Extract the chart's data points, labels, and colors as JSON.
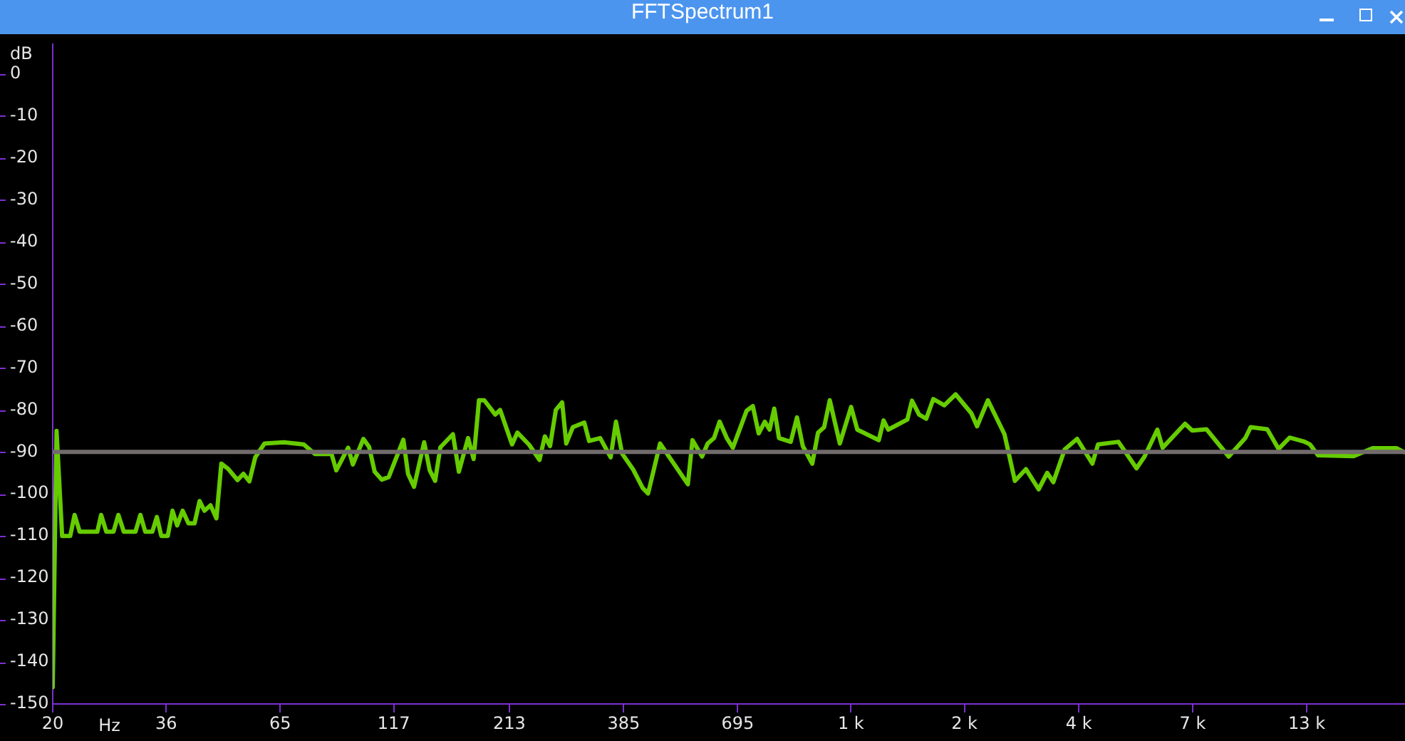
{
  "chart_data": {
    "type": "line",
    "title": "FFTSpectrum1",
    "xlabel": "Hz",
    "ylabel": "dB",
    "log": "x",
    "x": [
      20,
      20.4,
      21.0,
      21.9,
      22.4,
      23.0,
      25.2,
      25.7,
      26.4,
      27.4,
      28.1,
      28.9,
      30.7,
      31.5,
      32.3,
      33.5,
      34.3,
      35.1,
      36.3,
      37.2,
      38.1,
      39.2,
      40.4,
      41.7,
      42.8,
      43.9,
      45.3,
      46.7,
      47.9,
      49.6,
      52.1,
      53.7,
      55.4,
      57.1,
      59.9,
      66.2,
      73.4,
      77.8,
      84.8,
      86.9,
      92.4,
      94.7,
      100,
      103,
      106,
      110,
      114,
      123,
      126,
      130,
      137,
      141,
      145,
      149,
      159,
      164,
      172,
      177,
      182,
      187,
      198,
      203,
      216,
      222,
      236,
      249,
      256,
      263,
      271,
      280,
      286,
      296,
      314,
      322,
      341,
      360,
      370,
      382,
      404,
      425,
      437,
      465,
      537,
      550,
      578,
      595,
      615,
      633,
      657,
      678,
      728,
      752,
      775,
      800,
      820,
      840,
      861,
      915,
      945,
      974,
      1023,
      1054,
      1088,
      1120,
      1180,
      1251,
      1292,
      1444,
      1480,
      1516,
      1674,
      1715,
      1779,
      1846,
      1915,
      2027,
      2150,
      2332,
      2402,
      2541,
      2769,
      2922,
      3094,
      3305,
      3455,
      3566,
      3783,
      4034,
      4366,
      4496,
      4996,
      5488,
      5720,
      6113,
      6282,
      7055,
      7322,
      7882,
      8847,
      9644,
      9912,
      10800,
      11456,
      12126,
      13053,
      13472,
      14050,
      16900,
      18640,
      21090,
      21880
    ],
    "series": [
      {
        "color": "#66cc00",
        "values": [
          -146,
          -85,
          -110,
          -110,
          -105,
          -109,
          -109,
          -105,
          -109,
          -109,
          -105,
          -109,
          -109,
          -105,
          -109,
          -109,
          -105.5,
          -110,
          -110,
          -104,
          -107.5,
          -104,
          -107,
          -107,
          -101.7,
          -104,
          -102.7,
          -105.8,
          -92.8,
          -94,
          -96.7,
          -95.2,
          -97,
          -91.3,
          -88,
          -87.7,
          -88.2,
          -90.5,
          -90.5,
          -94.4,
          -89,
          -93,
          -86.9,
          -88.8,
          -94.7,
          -96.6,
          -96,
          -87.1,
          -95.2,
          -98.3,
          -87.7,
          -94.4,
          -96.9,
          -88.9,
          -85.8,
          -94.7,
          -86.7,
          -91.7,
          -77.7,
          -77.7,
          -81.1,
          -80,
          -88.2,
          -85.4,
          -88.3,
          -91.9,
          -86.3,
          -88.6,
          -80,
          -78.2,
          -88,
          -84.1,
          -83,
          -87.4,
          -86.7,
          -91.3,
          -82.8,
          -90.4,
          -94.1,
          -98.6,
          -99.9,
          -88,
          -97.7,
          -87.2,
          -91.1,
          -88,
          -86.7,
          -82.8,
          -86.7,
          -89,
          -80.2,
          -79.1,
          -85.6,
          -82.8,
          -84.7,
          -79.7,
          -86.7,
          -87.6,
          -81.8,
          -88.6,
          -92.8,
          -85.4,
          -84.1,
          -77.7,
          -88,
          -79.3,
          -84.7,
          -87.2,
          -82.5,
          -84.7,
          -82.3,
          -77.8,
          -81.1,
          -82.1,
          -77.4,
          -78.9,
          -76.3,
          -80.8,
          -83.9,
          -77.7,
          -85.8,
          -96.9,
          -94.1,
          -98.9,
          -95,
          -97.2,
          -89.4,
          -86.9,
          -92.8,
          -88.2,
          -87.6,
          -93.9,
          -91.1,
          -84.7,
          -89,
          -83.3,
          -84.9,
          -84.6,
          -91.1,
          -86.7,
          -84.1,
          -84.6,
          -89.3,
          -86.6,
          -87.5,
          -88.2,
          -90.8,
          -91,
          -89.1,
          -89.1,
          -90
        ]
      }
    ],
    "xlim": [
      20,
      22050
    ],
    "xticks": [
      20,
      36,
      65,
      117,
      213,
      385,
      695,
      {
        "value": 1250,
        "label": "1 k"
      },
      {
        "value": 2250,
        "label": "2 k"
      },
      {
        "value": 4070,
        "label": "4 k"
      },
      {
        "value": 7340,
        "label": "7 k"
      },
      {
        "value": 13250,
        "label": "13 k"
      }
    ],
    "ylim": [
      -150,
      7
    ],
    "yticks": [
      0,
      -10,
      -20,
      -30,
      -40,
      -50,
      -60,
      -70,
      -80,
      -90,
      -100,
      -110,
      -120,
      -130,
      -140,
      -150
    ],
    "ref_lines": [
      {
        "axis": "y",
        "value": -90,
        "color": "#716b6b"
      }
    ]
  }
}
